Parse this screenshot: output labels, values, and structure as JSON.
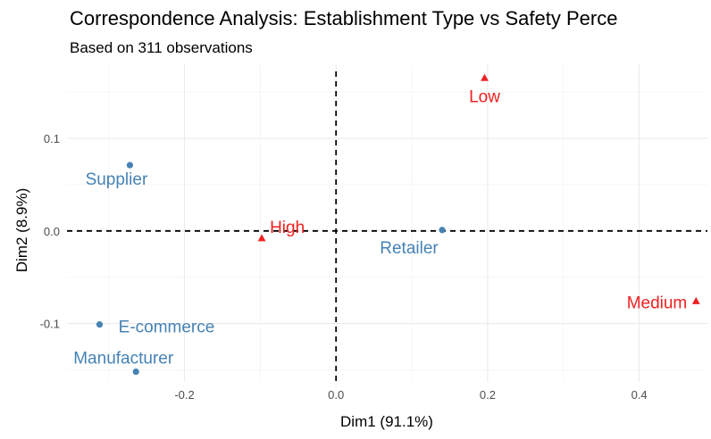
{
  "chart_data": {
    "type": "scatter",
    "title": "Correspondence Analysis: Establishment Type vs Safety Perce",
    "subtitle": "Based on 311 observations",
    "xlabel": "Dim1 (91.1%)",
    "ylabel": "Dim2 (8.9%)",
    "xlim": [
      -0.355,
      0.49
    ],
    "ylim": [
      -0.163,
      0.18
    ],
    "x_ticks": [
      -0.2,
      0.0,
      0.2,
      0.4
    ],
    "x_tick_labels": [
      "-0.2",
      "0.0",
      "0.2",
      "0.4"
    ],
    "y_ticks": [
      -0.1,
      0.0,
      0.1
    ],
    "y_tick_labels": [
      "-0.1",
      "0.0",
      "0.1"
    ],
    "grid": true,
    "reference_lines": {
      "x": 0,
      "y": 0,
      "style": "dashed"
    },
    "series": [
      {
        "color": "#4682b4",
        "marker": "circle",
        "points": [
          {
            "label": "Supplier",
            "x": -0.272,
            "y": 0.071
          },
          {
            "label": "Retailer",
            "x": 0.14,
            "y": 0.001
          },
          {
            "label": "E-commerce",
            "x": -0.312,
            "y": -0.101
          },
          {
            "label": "Manufacturer",
            "x": -0.264,
            "y": -0.152
          }
        ]
      },
      {
        "color": "#ee2020",
        "marker": "triangle",
        "points": [
          {
            "label": "Low",
            "x": 0.196,
            "y": 0.165
          },
          {
            "label": "High",
            "x": -0.098,
            "y": -0.008
          },
          {
            "label": "Medium",
            "x": 0.475,
            "y": -0.076
          }
        ]
      }
    ]
  }
}
